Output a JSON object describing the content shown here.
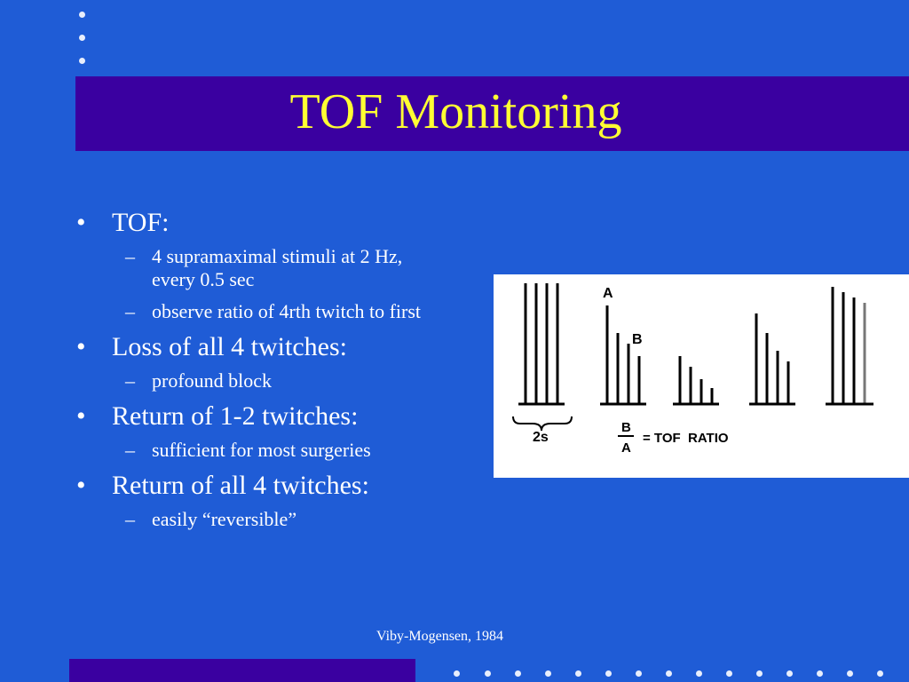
{
  "slide": {
    "title": "TOF Monitoring",
    "credit": "Viby-Mogensen, 1984"
  },
  "bullets": [
    {
      "text": "TOF:",
      "sub": [
        "4 supramaximal stimuli at 2 Hz, every 0.5 sec",
        "observe ratio of 4rth twitch to first"
      ]
    },
    {
      "text": "Loss of all 4 twitches:",
      "sub": [
        "profound block"
      ]
    },
    {
      "text": "Return of 1-2 twitches:",
      "sub": [
        "sufficient for most surgeries"
      ]
    },
    {
      "text": "Return of all 4 twitches:",
      "sub": [
        "easily “reversible”"
      ]
    }
  ],
  "figure": {
    "label_a": "A",
    "label_b": "B",
    "scale_label": "2s",
    "ratio_numerator": "B",
    "ratio_denominator": "A",
    "ratio_text": "= TOF  RATIO"
  },
  "markers": {
    "bullet": "•",
    "dash": "–"
  },
  "colors": {
    "background": "#1f5cd6",
    "title_bar": "#3a00a0",
    "title_text": "#ffff33",
    "body_text": "#ffffff"
  }
}
